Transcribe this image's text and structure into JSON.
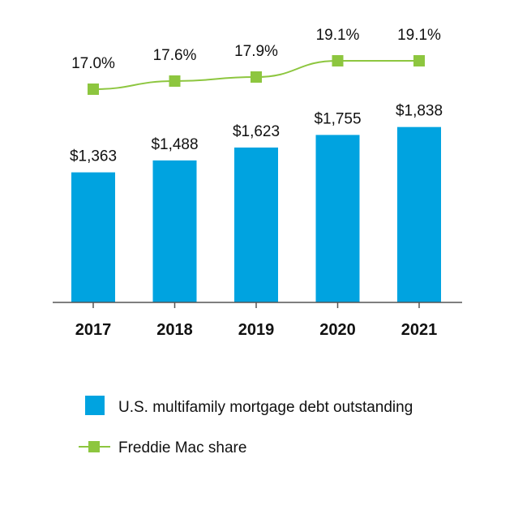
{
  "chart_data": {
    "type": "bar",
    "categories": [
      "2017",
      "2018",
      "2019",
      "2020",
      "2021"
    ],
    "series": [
      {
        "name": "U.S. multifamily mortgage debt outstanding",
        "chart_type": "bar",
        "values": [
          1363,
          1488,
          1623,
          1755,
          1838
        ],
        "labels": [
          "$1,363",
          "$1,488",
          "$1,623",
          "$1,755",
          "$1,838"
        ],
        "color": "#00A3E0"
      },
      {
        "name": "Freddie Mac share",
        "chart_type": "line",
        "values": [
          17.0,
          17.6,
          17.9,
          19.1,
          19.1
        ],
        "labels": [
          "17.0%",
          "17.6%",
          "17.9%",
          "19.1%",
          "19.1%"
        ],
        "color": "#8DC63F"
      }
    ],
    "title": "",
    "xlabel": "",
    "ylabel": "",
    "ylim": [
      0,
      2000
    ],
    "share_range": [
      16,
      20
    ],
    "grid": false,
    "legend_placement": "bottom-left"
  }
}
